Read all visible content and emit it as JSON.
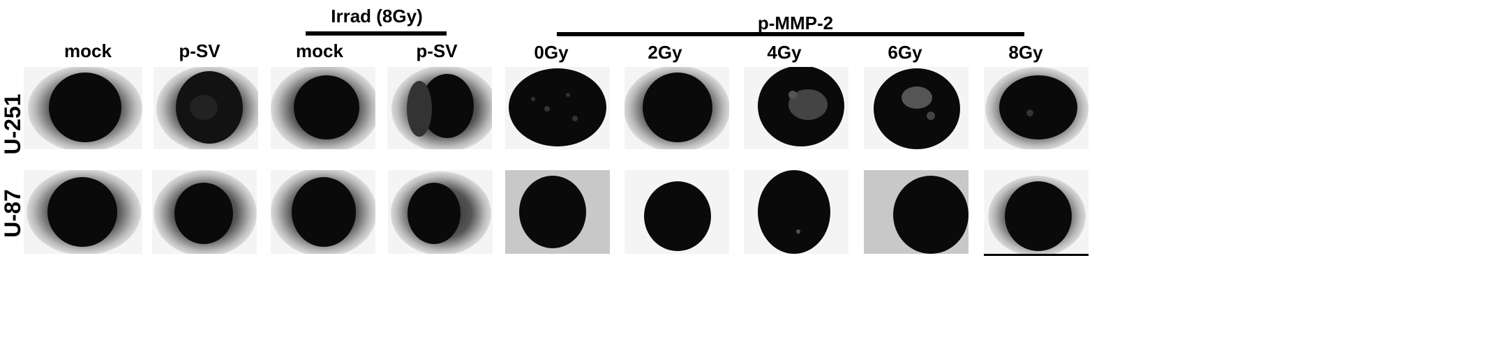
{
  "column_headers": [
    "mock",
    "p-SV",
    "mock",
    "p-SV",
    "0Gy",
    "2Gy",
    "4Gy",
    "6Gy",
    "8Gy"
  ],
  "group_labels": {
    "irrad": "Irrad (8Gy)",
    "pmmp2": "p-MMP-2"
  },
  "row_labels": [
    "U-251",
    "U-87"
  ],
  "colors": {
    "spheroid": "#0a0a0a",
    "background_light": "#f3f3f3",
    "background_gray": "#c8c8c8"
  }
}
